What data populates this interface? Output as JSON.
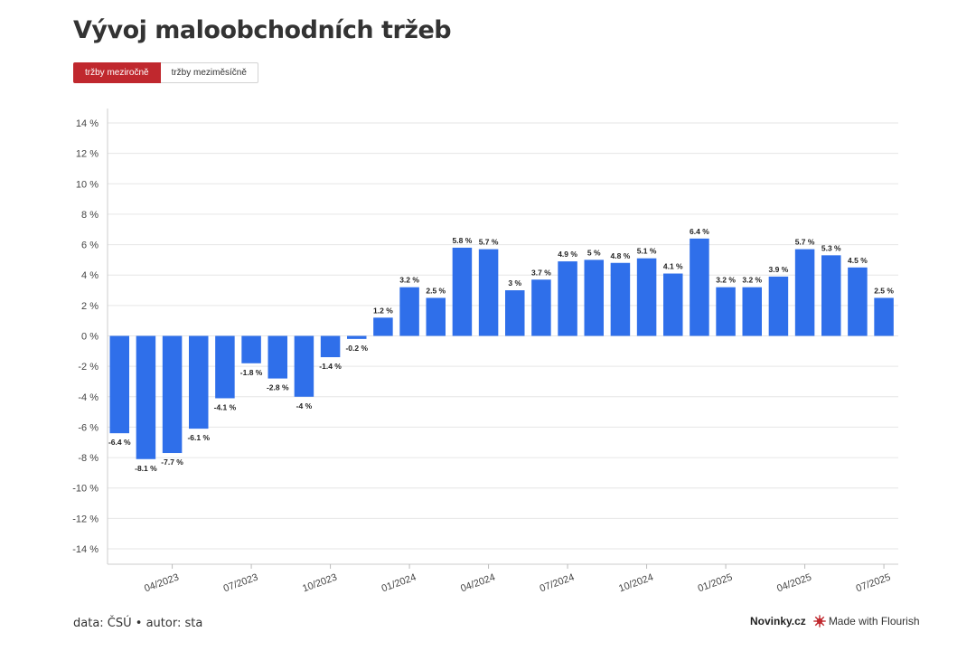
{
  "header": {
    "title": "Vývoj maloobchodních tržeb"
  },
  "toggle": {
    "active_label": "tržby meziročně",
    "inactive_label": "tržby meziměsíčně"
  },
  "footer": {
    "source": "data: ČSÚ • autor: sta",
    "brand": "Novinky.cz",
    "made_with": "Made with Flourish"
  },
  "colors": {
    "bar": "#2f6fea",
    "accent": "#c0282e",
    "grid": "#e6e6e6"
  },
  "chart_data": {
    "type": "bar",
    "title": "Vývoj maloobchodních tržeb",
    "xlabel": "",
    "ylabel": "",
    "ylim": [
      -14,
      14
    ],
    "y_ticks": [
      14,
      12,
      10,
      8,
      6,
      4,
      2,
      0,
      -2,
      -4,
      -6,
      -8,
      -10,
      -12,
      -14
    ],
    "y_tick_labels": [
      "14 %",
      "12 %",
      "10 %",
      "8 %",
      "6 %",
      "4 %",
      "2 %",
      "0 %",
      "-2 %",
      "-4 %",
      "-6 %",
      "-8 %",
      "-10 %",
      "-12 %",
      "-14 %"
    ],
    "grid": true,
    "categories": [
      "02/2023",
      "03/2023",
      "04/2023",
      "05/2023",
      "06/2023",
      "07/2023",
      "08/2023",
      "09/2023",
      "10/2023",
      "11/2023",
      "12/2023",
      "01/2024",
      "02/2024",
      "03/2024",
      "04/2024",
      "05/2024",
      "06/2024",
      "07/2024",
      "08/2024",
      "09/2024",
      "10/2024",
      "11/2024",
      "12/2024",
      "01/2025",
      "02/2025",
      "03/2025",
      "04/2025",
      "05/2025",
      "06/2025",
      "07/2025"
    ],
    "values": [
      -6.4,
      -8.1,
      -7.7,
      -6.1,
      -4.1,
      -1.8,
      -2.8,
      -4,
      -1.4,
      -0.2,
      1.2,
      3.2,
      2.5,
      5.8,
      5.7,
      3,
      3.7,
      4.9,
      5,
      4.8,
      5.1,
      4.1,
      6.4,
      3.2,
      3.2,
      3.9,
      5.7,
      5.3,
      4.5,
      2.5
    ],
    "data_labels": [
      "-6.4 %",
      "-8.1 %",
      "-7.7 %",
      "-6.1 %",
      "-4.1 %",
      "-1.8 %",
      "-2.8 %",
      "-4 %",
      "-1.4 %",
      "-0.2 %",
      "1.2 %",
      "3.2 %",
      "2.5 %",
      "5.8 %",
      "5.7 %",
      "3 %",
      "3.7 %",
      "4.9 %",
      "5 %",
      "4.8 %",
      "5.1 %",
      "4.1 %",
      "6.4 %",
      "3.2 %",
      "3.2 %",
      "3.9 %",
      "5.7 %",
      "5.3 %",
      "4.5 %",
      "2.5 %"
    ],
    "x_tick_labels": [
      {
        "label": "04/2023",
        "index": 2
      },
      {
        "label": "07/2023",
        "index": 5
      },
      {
        "label": "10/2023",
        "index": 8
      },
      {
        "label": "01/2024",
        "index": 11
      },
      {
        "label": "04/2024",
        "index": 14
      },
      {
        "label": "07/2024",
        "index": 17
      },
      {
        "label": "10/2024",
        "index": 20
      },
      {
        "label": "01/2025",
        "index": 23
      },
      {
        "label": "04/2025",
        "index": 26
      },
      {
        "label": "07/2025",
        "index": 29
      }
    ]
  }
}
